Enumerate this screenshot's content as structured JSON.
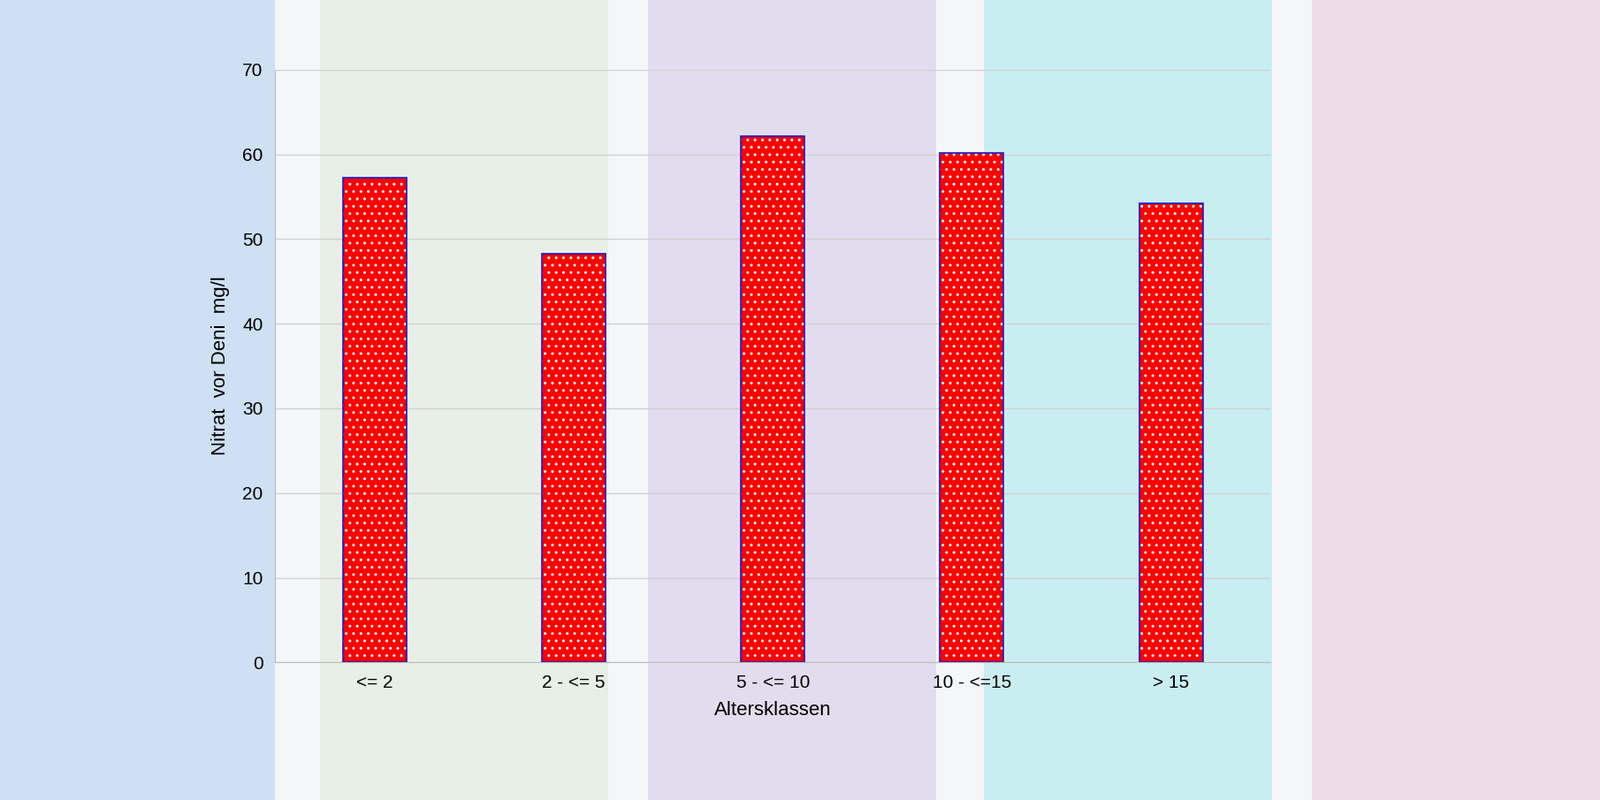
{
  "chart_data": {
    "type": "bar",
    "x_label": "Altersklassen",
    "y_label": "Nitrat  vor Deni  mg/l",
    "categories": [
      "<= 2",
      "2 - <= 5",
      "5 - <= 10",
      "10 - <=15",
      "> 15"
    ],
    "values": [
      57.2,
      48.3,
      62.1,
      60.2,
      54.2
    ],
    "color": "#ff0000",
    "ylim": [
      0,
      70
    ],
    "yticks": [
      0,
      10,
      20,
      30,
      40,
      50,
      60,
      70
    ],
    "grid": true
  }
}
